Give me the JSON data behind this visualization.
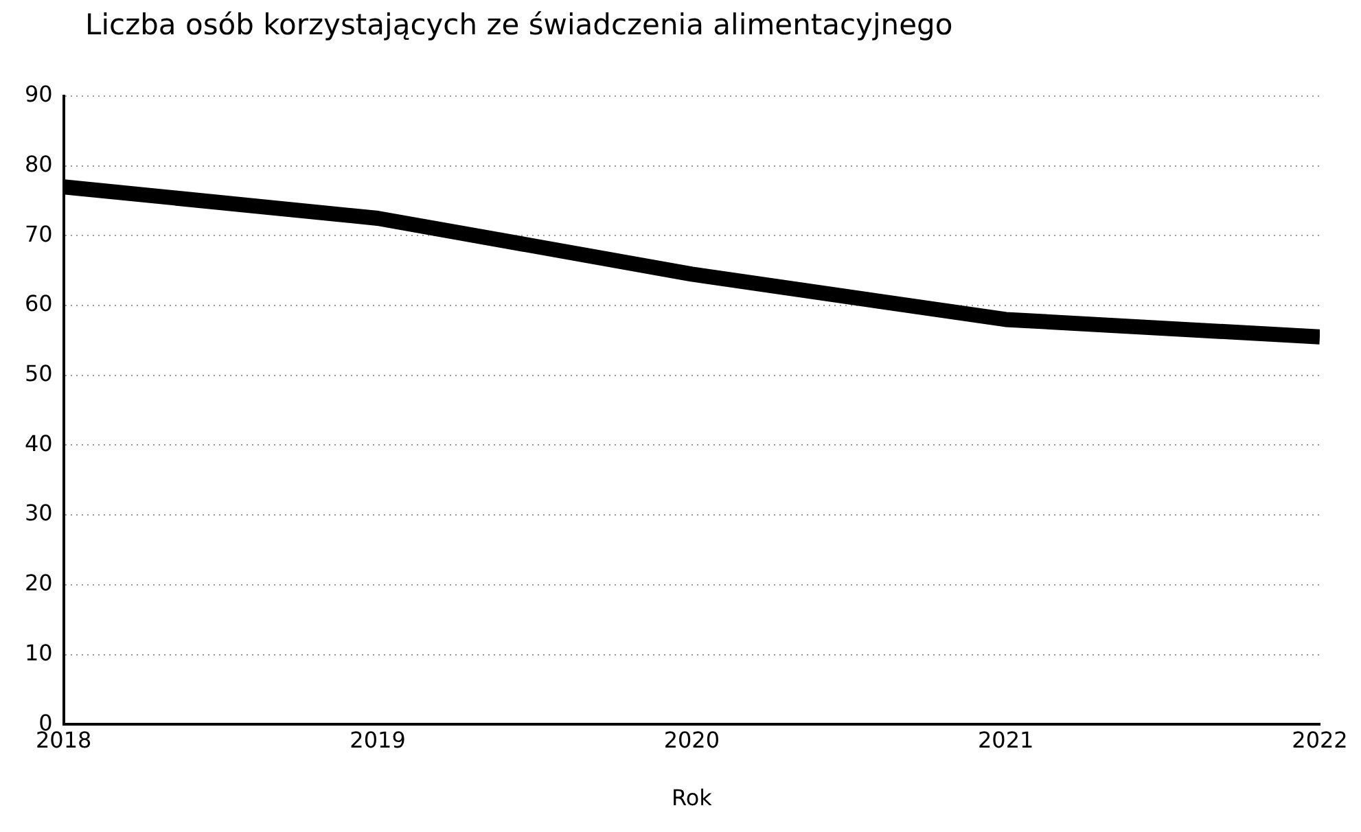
{
  "chart_data": {
    "type": "line",
    "title": "Liczba osób korzystających ze świadczenia alimentacyjnego",
    "xlabel": "Rok",
    "x": [
      2018,
      2019,
      2020,
      2021,
      2022
    ],
    "series": [
      {
        "color": "#000000",
        "values": [
          77,
          72.5,
          64.5,
          58,
          55.5
        ]
      }
    ],
    "xlim": [
      2018,
      2022
    ],
    "xticks": [
      2018,
      2019,
      2020,
      2021,
      2022
    ],
    "ylim": [
      0,
      90
    ],
    "yticks": [
      0,
      10,
      20,
      30,
      40,
      50,
      60,
      70,
      80,
      90
    ],
    "grid": "y",
    "legend": false,
    "marker": "none",
    "line_style": "solid"
  }
}
